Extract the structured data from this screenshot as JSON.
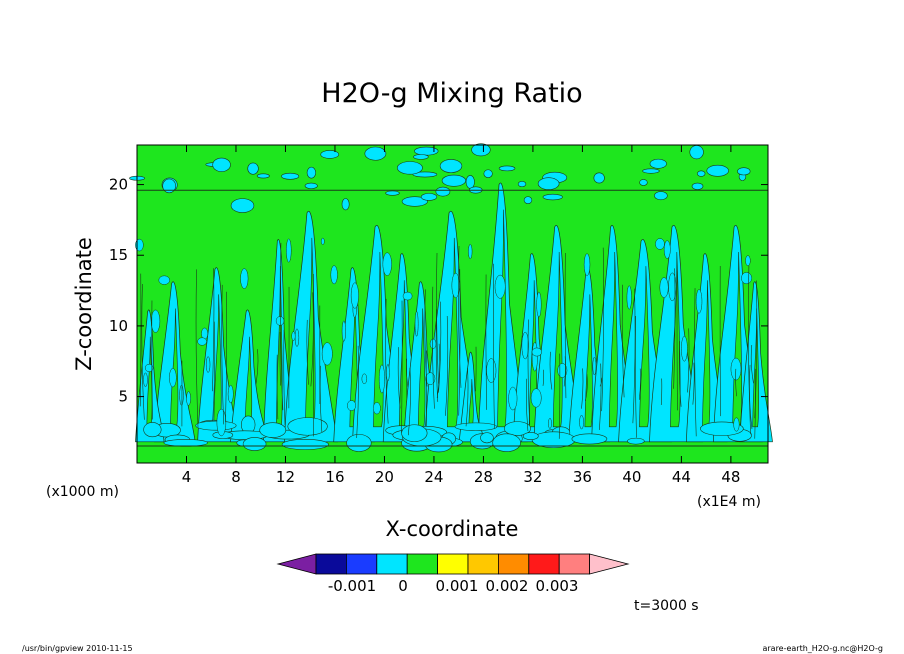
{
  "chart_data": {
    "type": "heatmap",
    "title": "H2O-g Mixing Ratio",
    "xlabel": "X-coordinate",
    "ylabel": "Z-coordinate",
    "x_unit_left": "(x1000 m)",
    "x_unit_right": "(x1E4 m)",
    "x_ticks": [
      4,
      8,
      12,
      16,
      20,
      24,
      28,
      32,
      36,
      40,
      44,
      48
    ],
    "y_ticks": [
      5,
      10,
      15,
      20
    ],
    "xlim": [
      0,
      51
    ],
    "ylim": [
      0.3,
      22.8
    ],
    "grid": false,
    "legend": {
      "position": "bottom",
      "colors": [
        "#7b1fa2",
        "#0a0a9a",
        "#1a3cff",
        "#00e5ff",
        "#1ee61e",
        "#ffff00",
        "#ffc800",
        "#ff8c00",
        "#ff1a1a",
        "#ff7f7f",
        "#ffc0cb"
      ],
      "labels": [
        "-0.001",
        "0",
        "0.001",
        "0.002",
        "0.003"
      ]
    },
    "fill_colors": {
      "cyan": "#00e5ff",
      "green": "#1ee61e"
    },
    "annotation": "t=3000 s"
  },
  "footer": {
    "left_text": "/usr/bin/gpview   2010-11-15",
    "right_text": "arare-earth_H2O-g.nc@H2O-g"
  }
}
